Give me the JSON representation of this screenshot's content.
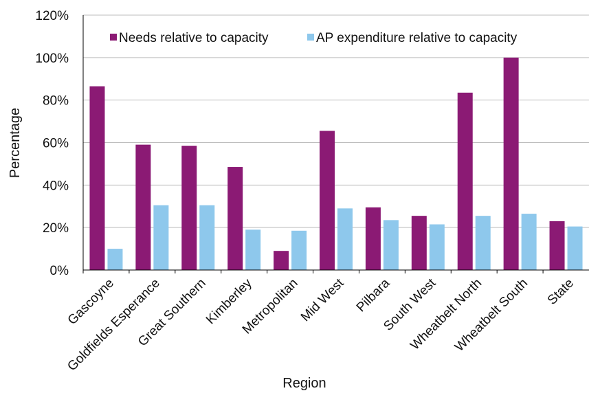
{
  "chart_data": {
    "type": "bar",
    "title": "",
    "xlabel": "Region",
    "ylabel": "Percentage",
    "ylim": [
      0,
      120
    ],
    "y_tick_values": [
      0,
      20,
      40,
      60,
      80,
      100,
      120
    ],
    "y_tick_suffix": "%",
    "grid": true,
    "legend_position": "top",
    "categories": [
      "Gascoyne",
      "Goldfields Esperance",
      "Great Southern",
      "Kimberley",
      "Metropolitan",
      "Mid West",
      "Pilbara",
      "South West",
      "Wheatbelt North",
      "Wheatbelt South",
      "State"
    ],
    "series": [
      {
        "name": "Needs relative to capacity",
        "color": "#8b1a74",
        "values": [
          86.5,
          59,
          58.5,
          48.5,
          9,
          65.5,
          29.5,
          25.5,
          83.5,
          100,
          23
        ]
      },
      {
        "name": "AP expenditure relative to capacity",
        "color": "#8ec8ec",
        "values": [
          10,
          30.5,
          30.5,
          19,
          18.5,
          29,
          23.5,
          21.5,
          25.5,
          26.5,
          20.5
        ]
      }
    ],
    "colors": {
      "gridline": "#bdbdbd",
      "axis": "#000000"
    }
  }
}
